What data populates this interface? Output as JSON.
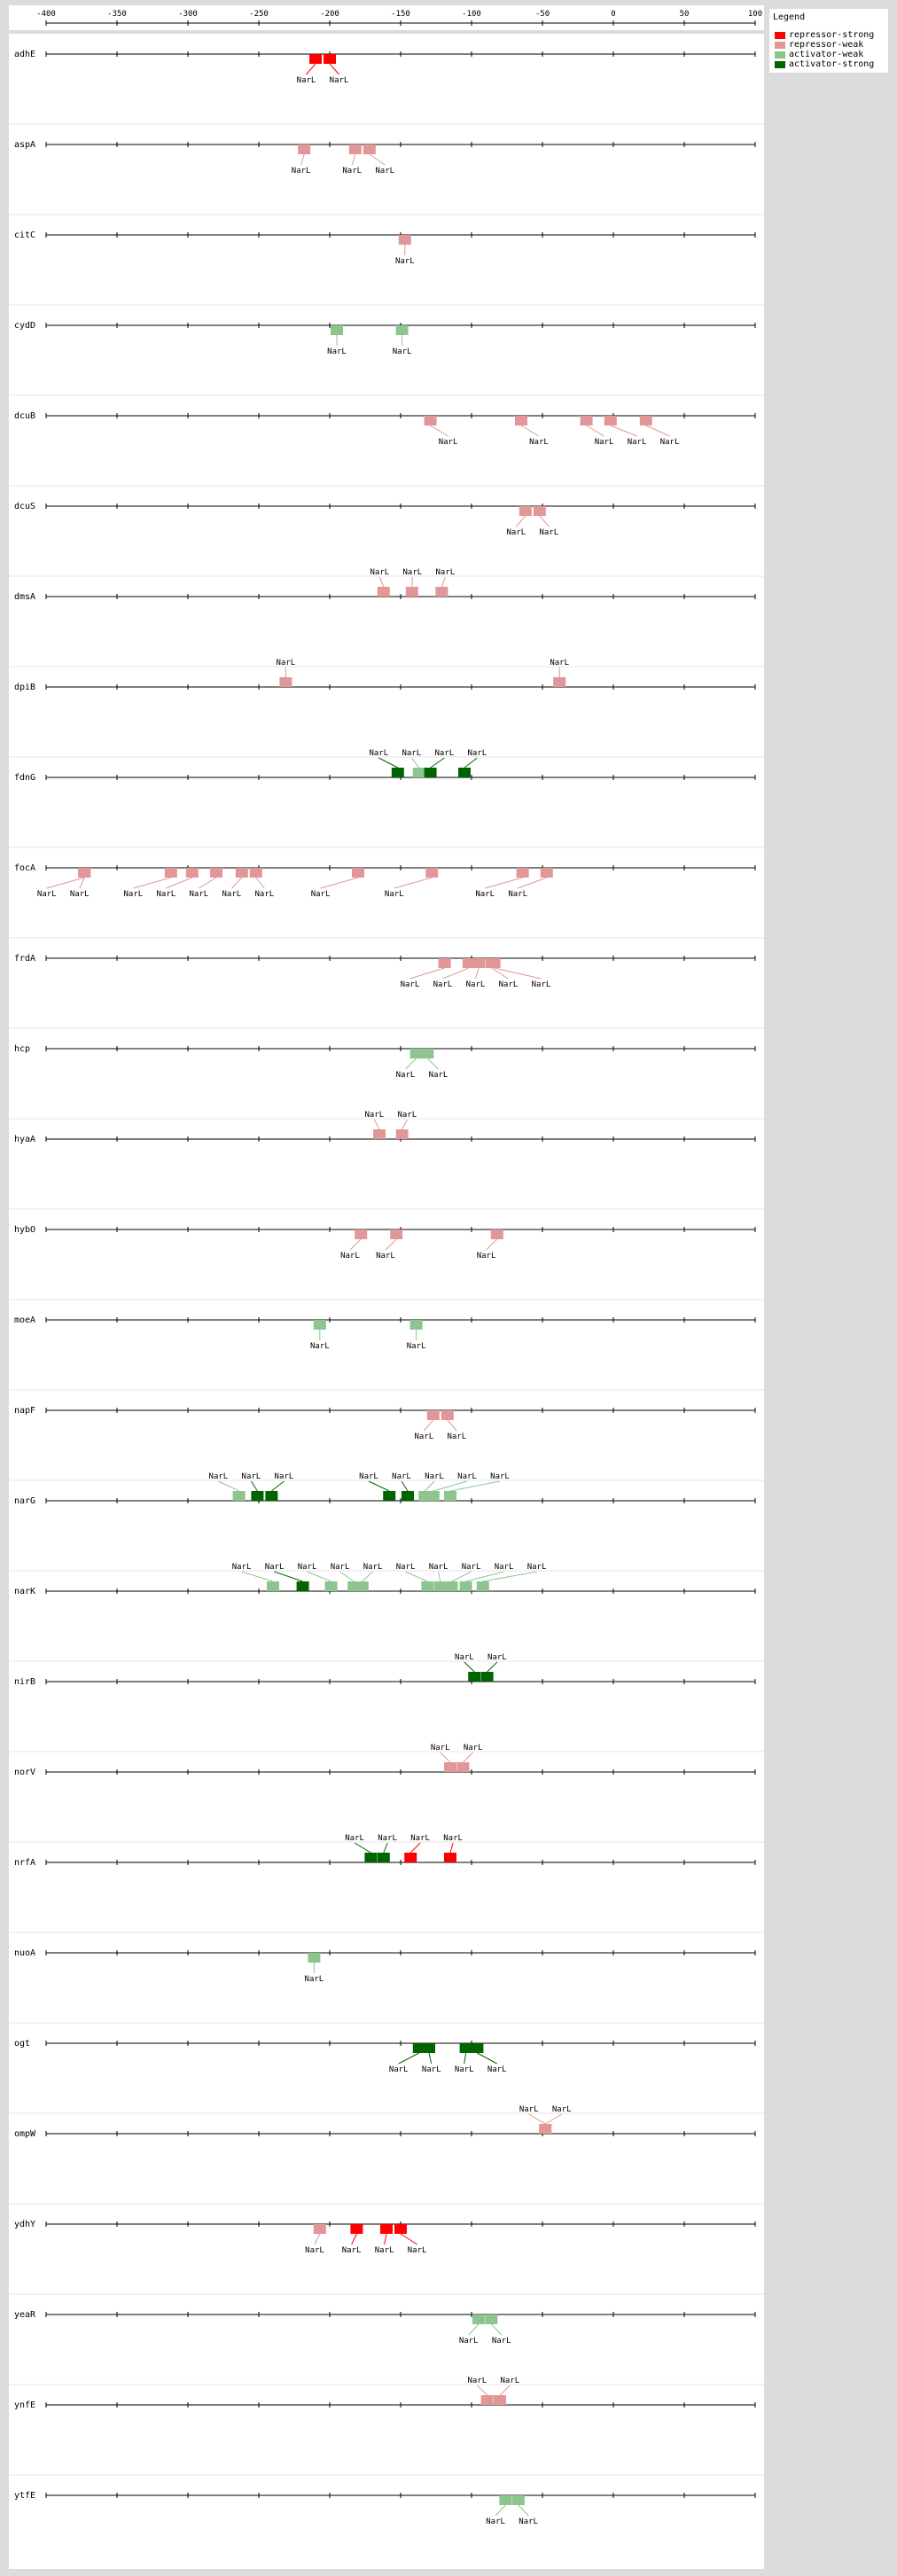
{
  "legend": {
    "title": "Legend",
    "items": [
      {
        "label": "repressor-strong",
        "color": "#ff0000"
      },
      {
        "label": "repressor-weak",
        "color": "#e19797"
      },
      {
        "label": "activator-weak",
        "color": "#8ec48e"
      },
      {
        "label": "activator-strong",
        "color": "#006400"
      }
    ]
  },
  "axis": {
    "min": -400,
    "max": 100,
    "ticks": [
      -400,
      -350,
      -300,
      -250,
      -200,
      -150,
      -100,
      -50,
      0,
      50,
      100
    ]
  },
  "genes": [
    {
      "name": "adhE",
      "sites": [
        {
          "pos": -210,
          "type": "repressor-strong",
          "label": "NarL",
          "side": "below"
        },
        {
          "pos": -200,
          "type": "repressor-strong",
          "label": "NarL",
          "side": "below"
        }
      ]
    },
    {
      "name": "aspA",
      "sites": [
        {
          "pos": -218,
          "type": "repressor-weak",
          "label": "NarL",
          "side": "below"
        },
        {
          "pos": -182,
          "type": "repressor-weak",
          "label": "NarL",
          "side": "below"
        },
        {
          "pos": -172,
          "type": "repressor-weak",
          "label": "NarL",
          "side": "below"
        }
      ]
    },
    {
      "name": "citC",
      "sites": [
        {
          "pos": -147,
          "type": "repressor-weak",
          "label": "NarL",
          "side": "below"
        }
      ]
    },
    {
      "name": "cydD",
      "sites": [
        {
          "pos": -195,
          "type": "activator-weak",
          "label": "NarL",
          "side": "below"
        },
        {
          "pos": -149,
          "type": "activator-weak",
          "label": "NarL",
          "side": "below"
        }
      ]
    },
    {
      "name": "dcuB",
      "sites": [
        {
          "pos": -129,
          "type": "repressor-weak",
          "label": "NarL",
          "side": "below"
        },
        {
          "pos": -65,
          "type": "repressor-weak",
          "label": "NarL",
          "side": "below"
        },
        {
          "pos": -19,
          "type": "repressor-weak",
          "label": "NarL",
          "side": "below"
        },
        {
          "pos": -2,
          "type": "repressor-weak",
          "label": "NarL",
          "side": "below"
        },
        {
          "pos": 23,
          "type": "repressor-weak",
          "label": "NarL",
          "side": "below"
        }
      ]
    },
    {
      "name": "dcuS",
      "sites": [
        {
          "pos": -62,
          "type": "repressor-weak",
          "label": "NarL",
          "side": "below"
        },
        {
          "pos": -52,
          "type": "repressor-weak",
          "label": "NarL",
          "side": "below"
        }
      ]
    },
    {
      "name": "dmsA",
      "sites": [
        {
          "pos": -162,
          "type": "repressor-weak",
          "label": "NarL",
          "side": "above"
        },
        {
          "pos": -142,
          "type": "repressor-weak",
          "label": "NarL",
          "side": "above"
        },
        {
          "pos": -121,
          "type": "repressor-weak",
          "label": "NarL",
          "side": "above"
        }
      ]
    },
    {
      "name": "dpiB",
      "sites": [
        {
          "pos": -231,
          "type": "repressor-weak",
          "label": "NarL",
          "side": "above"
        },
        {
          "pos": -38,
          "type": "repressor-weak",
          "label": "NarL",
          "side": "above"
        }
      ]
    },
    {
      "name": "fdnG",
      "sites": [
        {
          "pos": -152,
          "type": "activator-strong",
          "label": "NarL",
          "side": "above"
        },
        {
          "pos": -137,
          "type": "activator-weak",
          "label": "NarL",
          "side": "above"
        },
        {
          "pos": -129,
          "type": "activator-strong",
          "label": "NarL",
          "side": "above"
        },
        {
          "pos": -105,
          "type": "activator-strong",
          "label": "NarL",
          "side": "above"
        }
      ]
    },
    {
      "name": "focA",
      "sites": [
        {
          "pos": -373,
          "type": "repressor-weak",
          "label": "NarL",
          "side": "below"
        },
        {
          "pos": -373,
          "type": "repressor-weak",
          "label": "NarL",
          "side": "below"
        },
        {
          "pos": -312,
          "type": "repressor-weak",
          "label": "NarL",
          "side": "below"
        },
        {
          "pos": -297,
          "type": "repressor-weak",
          "label": "NarL",
          "side": "below"
        },
        {
          "pos": -280,
          "type": "repressor-weak",
          "label": "NarL",
          "side": "below"
        },
        {
          "pos": -262,
          "type": "repressor-weak",
          "label": "NarL",
          "side": "below"
        },
        {
          "pos": -252,
          "type": "repressor-weak",
          "label": "NarL",
          "side": "below"
        },
        {
          "pos": -180,
          "type": "repressor-weak",
          "label": "NarL",
          "side": "below"
        },
        {
          "pos": -128,
          "type": "repressor-weak",
          "label": "NarL",
          "side": "below"
        },
        {
          "pos": -64,
          "type": "repressor-weak",
          "label": "NarL",
          "side": "below"
        },
        {
          "pos": -47,
          "type": "repressor-weak",
          "label": "NarL",
          "side": "below"
        }
      ]
    },
    {
      "name": "frdA",
      "sites": [
        {
          "pos": -119,
          "type": "repressor-weak",
          "label": "NarL",
          "side": "below"
        },
        {
          "pos": -102,
          "type": "repressor-weak",
          "label": "NarL",
          "side": "below"
        },
        {
          "pos": -95,
          "type": "repressor-weak",
          "label": "NarL",
          "side": "below"
        },
        {
          "pos": -86,
          "type": "repressor-weak",
          "label": "NarL",
          "side": "below"
        },
        {
          "pos": -84,
          "type": "repressor-weak",
          "label": "NarL",
          "side": "below"
        }
      ]
    },
    {
      "name": "hcp",
      "sites": [
        {
          "pos": -139,
          "type": "activator-weak",
          "label": "NarL",
          "side": "below"
        },
        {
          "pos": -131,
          "type": "activator-weak",
          "label": "NarL",
          "side": "below"
        }
      ]
    },
    {
      "name": "hyaA",
      "sites": [
        {
          "pos": -165,
          "type": "repressor-weak",
          "label": "NarL",
          "side": "above"
        },
        {
          "pos": -149,
          "type": "repressor-weak",
          "label": "NarL",
          "side": "above"
        }
      ]
    },
    {
      "name": "hybO",
      "sites": [
        {
          "pos": -178,
          "type": "repressor-weak",
          "label": "NarL",
          "side": "below"
        },
        {
          "pos": -153,
          "type": "repressor-weak",
          "label": "NarL",
          "side": "below"
        },
        {
          "pos": -82,
          "type": "repressor-weak",
          "label": "NarL",
          "side": "below"
        }
      ]
    },
    {
      "name": "moeA",
      "sites": [
        {
          "pos": -207,
          "type": "activator-weak",
          "label": "NarL",
          "side": "below"
        },
        {
          "pos": -139,
          "type": "activator-weak",
          "label": "NarL",
          "side": "below"
        }
      ]
    },
    {
      "name": "napF",
      "sites": [
        {
          "pos": -127,
          "type": "repressor-weak",
          "label": "NarL",
          "side": "below"
        },
        {
          "pos": -117,
          "type": "repressor-weak",
          "label": "NarL",
          "side": "below"
        }
      ]
    },
    {
      "name": "narG",
      "sites": [
        {
          "pos": -264,
          "type": "activator-weak",
          "label": "NarL",
          "side": "above"
        },
        {
          "pos": -251,
          "type": "activator-strong",
          "label": "NarL",
          "side": "above"
        },
        {
          "pos": -241,
          "type": "activator-strong",
          "label": "NarL",
          "side": "above"
        },
        {
          "pos": -158,
          "type": "activator-strong",
          "label": "NarL",
          "side": "above"
        },
        {
          "pos": -145,
          "type": "activator-strong",
          "label": "NarL",
          "side": "above"
        },
        {
          "pos": -133,
          "type": "activator-weak",
          "label": "NarL",
          "side": "above"
        },
        {
          "pos": -127,
          "type": "activator-weak",
          "label": "NarL",
          "side": "above"
        },
        {
          "pos": -115,
          "type": "activator-weak",
          "label": "NarL",
          "side": "above"
        }
      ]
    },
    {
      "name": "narK",
      "sites": [
        {
          "pos": -240,
          "type": "activator-weak",
          "label": "NarL",
          "side": "above"
        },
        {
          "pos": -219,
          "type": "activator-strong",
          "label": "NarL",
          "side": "above"
        },
        {
          "pos": -199,
          "type": "activator-weak",
          "label": "NarL",
          "side": "above"
        },
        {
          "pos": -183,
          "type": "activator-weak",
          "label": "NarL",
          "side": "above"
        },
        {
          "pos": -177,
          "type": "activator-weak",
          "label": "NarL",
          "side": "above"
        },
        {
          "pos": -131,
          "type": "activator-weak",
          "label": "NarL",
          "side": "above"
        },
        {
          "pos": -122,
          "type": "activator-weak",
          "label": "NarL",
          "side": "above"
        },
        {
          "pos": -114,
          "type": "activator-weak",
          "label": "NarL",
          "side": "above"
        },
        {
          "pos": -104,
          "type": "activator-weak",
          "label": "NarL",
          "side": "above"
        },
        {
          "pos": -92,
          "type": "activator-weak",
          "label": "NarL",
          "side": "above"
        }
      ]
    },
    {
      "name": "nirB",
      "sites": [
        {
          "pos": -98,
          "type": "activator-strong",
          "label": "NarL",
          "side": "above"
        },
        {
          "pos": -89,
          "type": "activator-strong",
          "label": "NarL",
          "side": "above"
        }
      ]
    },
    {
      "name": "norV",
      "sites": [
        {
          "pos": -115,
          "type": "repressor-weak",
          "label": "NarL",
          "side": "above"
        },
        {
          "pos": -106,
          "type": "repressor-weak",
          "label": "NarL",
          "side": "above"
        }
      ]
    },
    {
      "name": "nrfA",
      "sites": [
        {
          "pos": -171,
          "type": "activator-strong",
          "label": "NarL",
          "side": "above"
        },
        {
          "pos": -162,
          "type": "activator-strong",
          "label": "NarL",
          "side": "above"
        },
        {
          "pos": -143,
          "type": "repressor-strong",
          "label": "NarL",
          "side": "above"
        },
        {
          "pos": -115,
          "type": "repressor-strong",
          "label": "NarL",
          "side": "above"
        }
      ]
    },
    {
      "name": "nuoA",
      "sites": [
        {
          "pos": -211,
          "type": "activator-weak",
          "label": "NarL",
          "side": "below"
        }
      ]
    },
    {
      "name": "ogt",
      "sites": [
        {
          "pos": -137,
          "type": "activator-strong",
          "label": "NarL",
          "side": "below"
        },
        {
          "pos": -130,
          "type": "activator-strong",
          "label": "NarL",
          "side": "below"
        },
        {
          "pos": -104,
          "type": "activator-strong",
          "label": "NarL",
          "side": "below"
        },
        {
          "pos": -96,
          "type": "activator-strong",
          "label": "NarL",
          "side": "below"
        }
      ]
    },
    {
      "name": "ompW",
      "sites": [
        {
          "pos": -48,
          "type": "repressor-weak",
          "label": "NarL",
          "side": "above"
        },
        {
          "pos": -48,
          "type": "repressor-weak",
          "label": "NarL",
          "side": "above"
        }
      ]
    },
    {
      "name": "ydhY",
      "sites": [
        {
          "pos": -207,
          "type": "repressor-weak",
          "label": "NarL",
          "side": "below"
        },
        {
          "pos": -181,
          "type": "repressor-strong",
          "label": "NarL",
          "side": "below"
        },
        {
          "pos": -160,
          "type": "repressor-strong",
          "label": "NarL",
          "side": "below"
        },
        {
          "pos": -150,
          "type": "repressor-strong",
          "label": "NarL",
          "side": "below"
        }
      ]
    },
    {
      "name": "yeaR",
      "sites": [
        {
          "pos": -95,
          "type": "activator-weak",
          "label": "NarL",
          "side": "below"
        },
        {
          "pos": -86,
          "type": "activator-weak",
          "label": "NarL",
          "side": "below"
        }
      ]
    },
    {
      "name": "ynfE",
      "sites": [
        {
          "pos": -89,
          "type": "repressor-weak",
          "label": "NarL",
          "side": "above"
        },
        {
          "pos": -80,
          "type": "repressor-weak",
          "label": "NarL",
          "side": "above"
        }
      ]
    },
    {
      "name": "ytfE",
      "sites": [
        {
          "pos": -76,
          "type": "activator-weak",
          "label": "NarL",
          "side": "below"
        },
        {
          "pos": -67,
          "type": "activator-weak",
          "label": "NarL",
          "side": "below"
        }
      ]
    }
  ]
}
